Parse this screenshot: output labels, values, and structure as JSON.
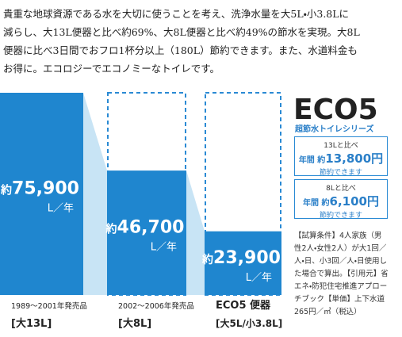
{
  "intro": [
    "貴重な地球資源である水を大切に使うことを考え、洗浄水量を大5L・小3.8Lに",
    "減らし、大13L便器と比べ約69%、大8L便器と比べ約49%の節水を実現。大8L",
    "便器に比べ3日間でおフロ1杯分以上（180L）節約できます。また、水道料金も",
    "お得に。エコロジーでエコノミーなトイレです。"
  ],
  "bars": [
    {
      "period": "1989～2001年発売品",
      "name": "[大13L]",
      "prefix": "約",
      "value": 75900,
      "value_label": "75,900",
      "unit": "L／年"
    },
    {
      "period": "2002～2006年発売品",
      "name": "[大8L]",
      "prefix": "約",
      "value": 46700,
      "value_label": "46,700",
      "unit": "L／年"
    },
    {
      "period": "ECO5 便器",
      "name": "[大5L/小3.8L]",
      "prefix": "約",
      "value": 23900,
      "value_label": "23,900",
      "unit": "L／年"
    }
  ],
  "logo": {
    "title": "ECO5",
    "subtitle": "超節水トイレシリーズ"
  },
  "savings": [
    {
      "compare": "13Lと比べ",
      "prefix": "年間 約",
      "amount": "13,800円",
      "note": "節約できます"
    },
    {
      "compare": "8Lと比べ",
      "prefix": "年間 約",
      "amount": "6,100円",
      "note": "節約できます"
    }
  ],
  "conditions": "【試算条件】4人家族（男性2人・女性2人）が大1回／人・日、小3回／人・日使用した場合で算出。【引用元】省エネ・防犯住宅推進アプローチブック【単価】上下水道265円／㎥（税込）"
}
